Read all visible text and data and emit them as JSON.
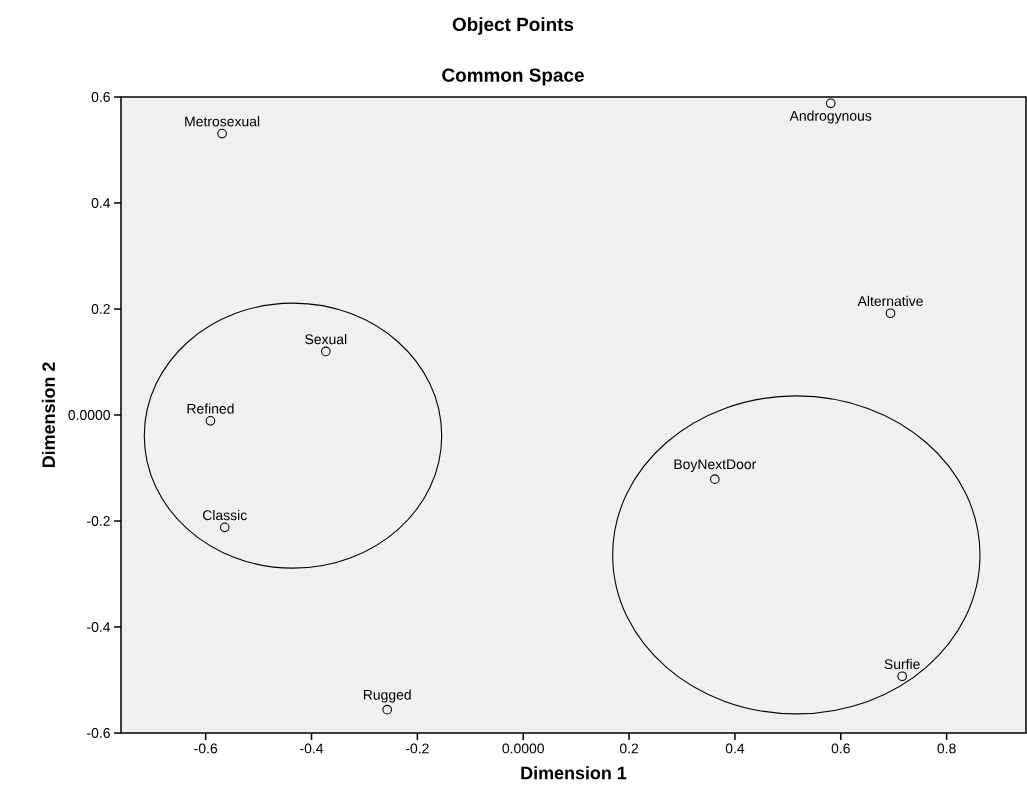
{
  "chart_data": {
    "type": "scatter",
    "title": "Object Points",
    "subtitle": "Common Space",
    "xlabel": "Dimension 1",
    "ylabel": "Dimension 2",
    "x": [
      -0.569,
      -0.373,
      -0.591,
      -0.564,
      -0.257,
      0.581,
      0.694,
      0.362,
      0.716
    ],
    "values": [
      0.531,
      0.12,
      -0.011,
      -0.212,
      -0.556,
      0.588,
      0.192,
      -0.121,
      -0.493
    ],
    "color": "#000000",
    "marker": "circle",
    "grid": false,
    "xlim": [
      -0.76,
      0.95
    ],
    "ylim": [
      -0.6,
      0.6
    ],
    "xticks": [
      -0.6,
      -0.4,
      -0.2,
      {
        "value": 0,
        "label": "0.0000"
      },
      0.2,
      0.4,
      0.6,
      0.8
    ],
    "yticks": [
      -0.6,
      -0.4,
      -0.2,
      {
        "value": 0,
        "label": "0.0000"
      },
      0.2,
      0.4,
      0.6
    ],
    "annotations": [
      {
        "text": "Metrosexual",
        "x": -0.569,
        "y": 0.531
      },
      {
        "text": "Sexual",
        "x": -0.373,
        "y": 0.12
      },
      {
        "text": "Refined",
        "x": -0.591,
        "y": -0.011
      },
      {
        "text": "Classic",
        "x": -0.564,
        "y": -0.212
      },
      {
        "text": "Rugged",
        "x": -0.257,
        "y": -0.556
      },
      {
        "text": "Androgynous",
        "x": 0.581,
        "y": 0.588
      },
      {
        "text": "Alternative",
        "x": 0.694,
        "y": 0.192
      },
      {
        "text": "BoyNextDoor",
        "x": 0.362,
        "y": -0.121
      },
      {
        "text": "Surfie",
        "x": 0.716,
        "y": -0.493
      }
    ]
  }
}
